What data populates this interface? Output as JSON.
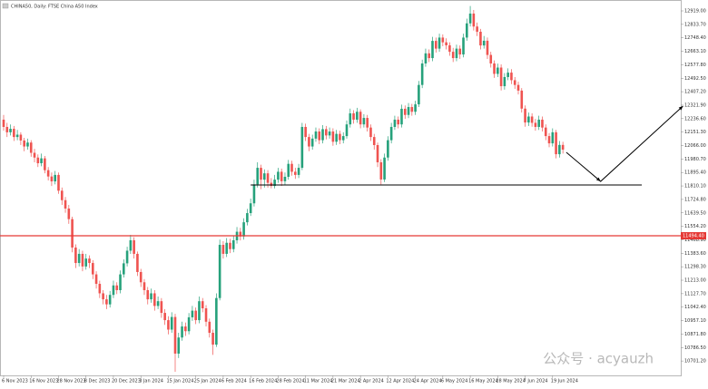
{
  "chart_data": {
    "type": "candlestick",
    "title": "CHINA50, Daily: FTSE China A50 Index",
    "watermark": "公众号 · acyauzh",
    "up_color": "#26a17b",
    "down_color": "#ef5350",
    "categories": [
      "6 Nov 2023",
      null,
      null,
      null,
      null,
      null,
      null,
      null,
      "16 Nov 2023",
      null,
      null,
      null,
      null,
      null,
      null,
      null,
      "28 Nov 2023",
      null,
      null,
      null,
      null,
      null,
      null,
      null,
      "8 Dec 2023",
      null,
      null,
      null,
      null,
      null,
      null,
      null,
      "20 Dec 2023",
      null,
      null,
      null,
      null,
      null,
      null,
      null,
      "3 Jan 2024",
      null,
      null,
      null,
      null,
      null,
      null,
      null,
      "15 Jan 2024",
      null,
      null,
      null,
      null,
      null,
      null,
      null,
      "25 Jan 2024",
      null,
      null,
      null,
      null,
      null,
      null,
      null,
      "6 Feb 2024",
      null,
      null,
      null,
      null,
      null,
      null,
      null,
      "16 Feb 2024",
      null,
      null,
      null,
      null,
      null,
      null,
      null,
      "28 Feb 2024",
      null,
      null,
      null,
      null,
      null,
      null,
      null,
      "11 Mar 2024",
      null,
      null,
      null,
      null,
      null,
      null,
      null,
      "21 Mar 2024",
      null,
      null,
      null,
      null,
      null,
      null,
      null,
      "2 Apr 2024",
      null,
      null,
      null,
      null,
      null,
      null,
      null,
      "12 Apr 2024",
      null,
      null,
      null,
      null,
      null,
      null,
      null,
      "24 Apr 2024",
      null,
      null,
      null,
      null,
      null,
      null,
      null,
      "6 May 2024",
      null,
      null,
      null,
      null,
      null,
      null,
      null,
      "16 May 2024",
      null,
      null,
      null,
      null,
      null,
      null,
      null,
      "28 May 2024",
      null,
      null,
      null,
      null,
      null,
      null,
      null,
      "7 Jun 2024",
      null,
      null,
      null,
      null,
      null,
      null,
      null,
      "19 Jun 2024",
      null,
      null,
      null
    ],
    "open": [
      12230,
      12184,
      12150,
      12172,
      12120,
      12135,
      12098,
      12060,
      12085,
      12020,
      11990,
      11954,
      11985,
      11910,
      11870,
      11839,
      11880,
      11780,
      11720,
      11667,
      11600,
      11420,
      11322,
      11380,
      11300,
      11350,
      11322,
      11250,
      11190,
      11130,
      11092,
      11060,
      11120,
      11180,
      11150,
      11250,
      11320,
      11400,
      11466,
      11380,
      11265,
      11200,
      11150,
      11092,
      11130,
      11050,
      11080,
      11006,
      10960,
      10900,
      10980,
      10748,
      10850,
      10920,
      10890,
      10978,
      11020,
      10960,
      11080,
      11035,
      10950,
      10880,
      10805,
      11100,
      11437,
      11380,
      11450,
      11410,
      11466,
      11520,
      11490,
      11580,
      11638,
      11700,
      11820,
      11925,
      11850,
      11890,
      11830,
      11810,
      11850,
      11900,
      11840,
      11868,
      11950,
      11900,
      11880,
      11925,
      12184,
      12120,
      12060,
      12110,
      12155,
      12100,
      12170,
      12130,
      12155,
      12090,
      12140,
      12100,
      12126,
      12200,
      12270,
      12230,
      12280,
      12200,
      12241,
      12180,
      12120,
      12069,
      11960,
      11851,
      11990,
      12100,
      12184,
      12230,
      12200,
      12299,
      12260,
      12310,
      12280,
      12327,
      12450,
      12586,
      12650,
      12620,
      12729,
      12680,
      12750,
      12720,
      12701,
      12660,
      12620,
      12680,
      12643,
      12750,
      12840,
      12902,
      12820,
      12787,
      12700,
      12730,
      12640,
      12586,
      12520,
      12560,
      12442,
      12500,
      12528,
      12480,
      12450,
      12414,
      12300,
      12212,
      12250,
      12210,
      12184,
      12230,
      12180,
      12126,
      12080,
      12150,
      12011,
      12070
    ],
    "high": [
      12260,
      12210,
      12200,
      12190,
      12165,
      12150,
      12115,
      12110,
      12100,
      12045,
      12010,
      12015,
      12000,
      11930,
      11895,
      11905,
      11895,
      11800,
      11740,
      11690,
      11615,
      11440,
      11410,
      11400,
      11380,
      11370,
      11340,
      11270,
      11210,
      11150,
      11120,
      11145,
      11210,
      11200,
      11275,
      11345,
      11425,
      11500,
      11485,
      11395,
      11285,
      11220,
      11170,
      11160,
      11150,
      11110,
      11100,
      11030,
      10985,
      11010,
      11000,
      10880,
      10950,
      10945,
      11005,
      11050,
      11040,
      11110,
      11100,
      11055,
      10970,
      10900,
      11130,
      11470,
      11460,
      11480,
      11475,
      11495,
      11550,
      11545,
      11605,
      11665,
      11730,
      11850,
      11960,
      11945,
      11915,
      11910,
      11860,
      11880,
      11925,
      11920,
      11895,
      11975,
      11970,
      11925,
      11950,
      12210,
      12205,
      12140,
      12135,
      12180,
      12175,
      12195,
      12190,
      12180,
      12175,
      12165,
      12160,
      12150,
      12225,
      12300,
      12290,
      12305,
      12295,
      12265,
      12260,
      12200,
      12140,
      12085,
      11980,
      12015,
      12125,
      12210,
      12255,
      12250,
      12325,
      12320,
      12335,
      12330,
      12350,
      12475,
      12610,
      12680,
      12675,
      12755,
      12750,
      12775,
      12770,
      12745,
      12720,
      12685,
      12705,
      12700,
      12775,
      12870,
      12950,
      12925,
      12845,
      12805,
      12760,
      12750,
      12660,
      12605,
      12585,
      12580,
      12525,
      12555,
      12550,
      12500,
      12470,
      12430,
      12320,
      12275,
      12270,
      12235,
      12255,
      12250,
      12200,
      12145,
      12175,
      12165,
      12095,
      12090
    ],
    "low": [
      12160,
      12120,
      12130,
      12095,
      12100,
      12070,
      12030,
      12040,
      11995,
      11960,
      11930,
      11935,
      11890,
      11845,
      11810,
      11820,
      11760,
      11690,
      11640,
      11570,
      11390,
      11290,
      11300,
      11270,
      11280,
      11290,
      11220,
      11160,
      11100,
      11060,
      11030,
      11040,
      11100,
      11125,
      11130,
      11230,
      11300,
      11380,
      11350,
      11240,
      11170,
      11120,
      11060,
      11070,
      11020,
      11030,
      10975,
      10930,
      10870,
      10880,
      10633,
      10720,
      10830,
      10860,
      10870,
      10955,
      10935,
      10940,
      11010,
      10920,
      10850,
      10740,
      10790,
      11085,
      11350,
      11360,
      11385,
      11390,
      11445,
      11465,
      11470,
      11560,
      11620,
      11680,
      11800,
      11790,
      11800,
      11800,
      11795,
      11795,
      11830,
      11810,
      11815,
      11850,
      11875,
      11855,
      11860,
      11910,
      12095,
      12030,
      12040,
      12090,
      12075,
      12080,
      12105,
      12110,
      12065,
      12070,
      12075,
      12080,
      12110,
      12180,
      12205,
      12210,
      12175,
      12180,
      12155,
      12095,
      12040,
      11930,
      11820,
      11835,
      11970,
      12080,
      12165,
      12175,
      12180,
      12235,
      12240,
      12255,
      12260,
      12310,
      12430,
      12565,
      12595,
      12600,
      12655,
      12660,
      12695,
      12675,
      12635,
      12595,
      12600,
      12615,
      12625,
      12730,
      12820,
      12795,
      12760,
      12675,
      12680,
      12615,
      12560,
      12495,
      12500,
      12415,
      12420,
      12480,
      12455,
      12425,
      12390,
      12275,
      12185,
      12190,
      12185,
      12160,
      12165,
      12155,
      12100,
      12055,
      12060,
      11985,
      11990,
      12015
    ],
    "close": [
      12184,
      12150,
      12172,
      12120,
      12135,
      12098,
      12060,
      12085,
      12020,
      11990,
      11954,
      11985,
      11910,
      11870,
      11839,
      11880,
      11780,
      11720,
      11667,
      11600,
      11420,
      11322,
      11380,
      11300,
      11350,
      11322,
      11250,
      11190,
      11130,
      11092,
      11060,
      11120,
      11180,
      11150,
      11250,
      11320,
      11400,
      11466,
      11380,
      11265,
      11200,
      11150,
      11092,
      11130,
      11050,
      11080,
      11006,
      10960,
      10900,
      10980,
      10748,
      10850,
      10920,
      10890,
      10978,
      11020,
      10960,
      11080,
      11035,
      10950,
      10880,
      10805,
      11100,
      11437,
      11380,
      11450,
      11410,
      11466,
      11520,
      11490,
      11580,
      11638,
      11700,
      11820,
      11925,
      11850,
      11890,
      11830,
      11810,
      11850,
      11900,
      11840,
      11868,
      11950,
      11900,
      11880,
      11925,
      12184,
      12120,
      12060,
      12110,
      12155,
      12100,
      12170,
      12130,
      12155,
      12090,
      12140,
      12100,
      12126,
      12200,
      12270,
      12230,
      12280,
      12200,
      12241,
      12180,
      12120,
      12069,
      11960,
      11851,
      11990,
      12100,
      12184,
      12230,
      12200,
      12299,
      12260,
      12310,
      12280,
      12327,
      12450,
      12586,
      12650,
      12620,
      12729,
      12680,
      12750,
      12720,
      12701,
      12660,
      12620,
      12680,
      12643,
      12750,
      12840,
      12902,
      12820,
      12787,
      12700,
      12730,
      12640,
      12586,
      12520,
      12560,
      12442,
      12500,
      12528,
      12480,
      12450,
      12414,
      12300,
      12212,
      12250,
      12210,
      12184,
      12230,
      12180,
      12126,
      12080,
      12150,
      12011,
      12070,
      12040
    ],
    "ylim": [
      10610,
      12988
    ],
    "yticks": [
      {
        "value": 12919,
        "label": "12919.00"
      },
      {
        "value": 12833.7,
        "label": "12833.70"
      },
      {
        "value": 12748.4,
        "label": "12748.40"
      },
      {
        "value": 12663.1,
        "label": "12663.10"
      },
      {
        "value": 12577.8,
        "label": "12577.80"
      },
      {
        "value": 12492.5,
        "label": "12492.50"
      },
      {
        "value": 12407.2,
        "label": "12407.20"
      },
      {
        "value": 12321.9,
        "label": "12321.90"
      },
      {
        "value": 12236.6,
        "label": "12236.60"
      },
      {
        "value": 12151.3,
        "label": "12151.30"
      },
      {
        "value": 12066,
        "label": "12066.00"
      },
      {
        "value": 11980.7,
        "label": "11980.70"
      },
      {
        "value": 11895.4,
        "label": "11895.40"
      },
      {
        "value": 11810.1,
        "label": "11810.10"
      },
      {
        "value": 11724.8,
        "label": "11724.80"
      },
      {
        "value": 11639.5,
        "label": "11639.50"
      },
      {
        "value": 11554.2,
        "label": "11554.20"
      },
      {
        "value": 11468.9,
        "label": "11468.90"
      },
      {
        "value": 11383.6,
        "label": "11383.60"
      },
      {
        "value": 11298.3,
        "label": "11298.30"
      },
      {
        "value": 11213,
        "label": "11213.00"
      },
      {
        "value": 11127.7,
        "label": "11127.70"
      },
      {
        "value": 11042.4,
        "label": "11042.40"
      },
      {
        "value": 10957.1,
        "label": "10957.10"
      },
      {
        "value": 10871.8,
        "label": "10871.80"
      },
      {
        "value": 10786.5,
        "label": "10786.50"
      },
      {
        "value": 10701.2,
        "label": "10701.20"
      }
    ],
    "price_line": {
      "value": 11494.4,
      "label": "11494.40",
      "color": "#e53935"
    },
    "support": {
      "value": 11816,
      "x": [
        72,
        186
      ],
      "color": "#000000"
    },
    "projection": {
      "x": [
        164,
        174,
        198
      ],
      "y": [
        12023,
        11839,
        12316
      ],
      "color": "#000000"
    }
  }
}
